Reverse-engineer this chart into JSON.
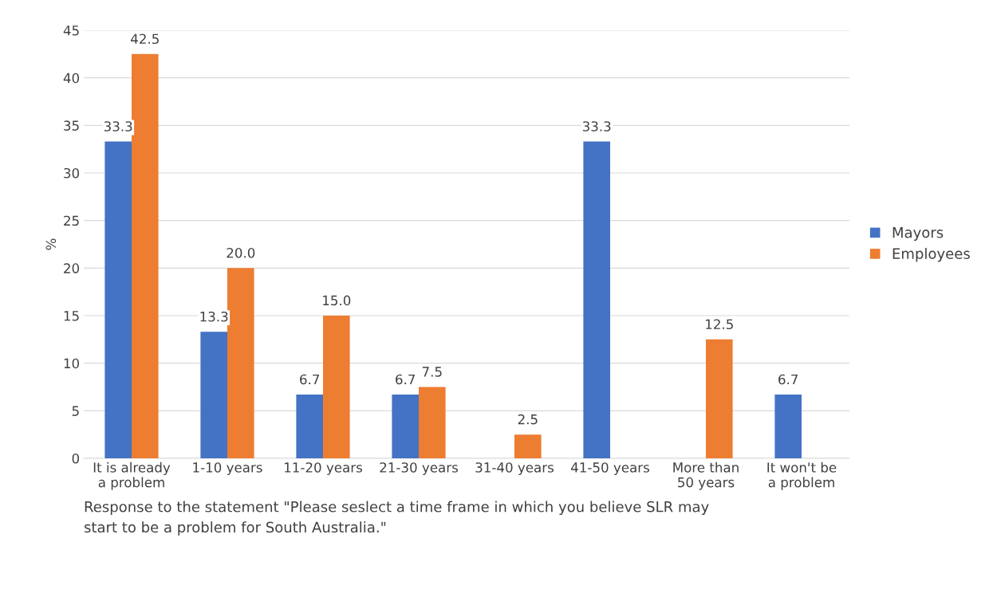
{
  "chart_data": {
    "type": "bar",
    "categories": [
      "It is already\na problem",
      "1-10 years",
      "11-20 years",
      "21-30 years",
      "31-40 years",
      "41-50 years",
      "More than\n50 years",
      "It won't be\na problem"
    ],
    "series": [
      {
        "name": "Mayors",
        "color": "#4472c4",
        "values": [
          33.3,
          13.3,
          6.7,
          6.7,
          null,
          33.3,
          null,
          6.7
        ],
        "value_labels": [
          "33.3",
          "13.3",
          "6.7",
          "6.7",
          null,
          "33.3",
          null,
          "6.7"
        ]
      },
      {
        "name": "Employees",
        "color": "#ed7d31",
        "values": [
          42.5,
          20.0,
          15.0,
          7.5,
          2.5,
          null,
          12.5,
          null
        ],
        "value_labels": [
          "42.5",
          "20.0",
          "15.0",
          "7.5",
          "2.5",
          null,
          "12.5",
          null
        ]
      }
    ],
    "ylabel": "%",
    "xlabel": "Response to the statement \"Please seslect a time frame in which you believe SLR may\nstart to be a problem for South Australia.\"",
    "ylim": [
      0,
      45
    ],
    "yticks": [
      0,
      5,
      10,
      15,
      20,
      25,
      30,
      35,
      40,
      45
    ],
    "grid": "y",
    "legend": "right"
  }
}
